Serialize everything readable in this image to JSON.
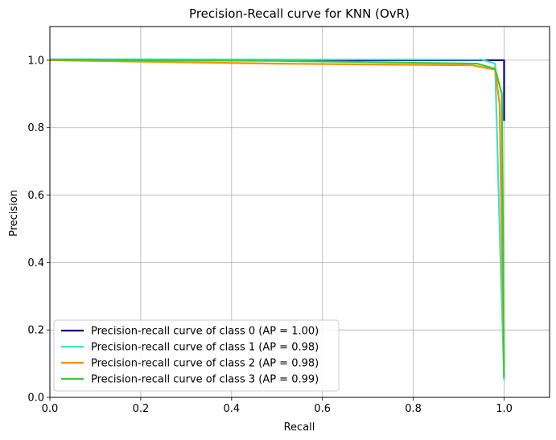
{
  "chart_data": {
    "type": "line",
    "title": "Precision-Recall curve for KNN (OvR)",
    "xlabel": "Recall",
    "ylabel": "Precision",
    "xlim": [
      0,
      1.1
    ],
    "ylim": [
      0,
      1.1
    ],
    "xticks": [
      "0.0",
      "0.2",
      "0.4",
      "0.6",
      "0.8",
      "1.0"
    ],
    "yticks": [
      "0.0",
      "0.2",
      "0.4",
      "0.6",
      "0.8",
      "1.0"
    ],
    "grid": true,
    "legend_position": "lower-left",
    "series": [
      {
        "name": "Precision-recall curve of class 0 (AP = 1.00)",
        "color": "#000080",
        "x": [
          0.0,
          1.0,
          1.0
        ],
        "y": [
          1.0,
          1.0,
          0.82
        ]
      },
      {
        "name": "Precision-recall curve of class 1 (AP = 0.98)",
        "color": "#40e0d0",
        "x": [
          0.0,
          0.95,
          0.98,
          0.99,
          1.0
        ],
        "y": [
          1.003,
          1.002,
          0.99,
          0.5,
          0.05
        ]
      },
      {
        "name": "Precision-recall curve of class 2 (AP = 0.98)",
        "color": "#ff8c00",
        "x": [
          0.0,
          0.5,
          0.93,
          0.98,
          0.99,
          1.0
        ],
        "y": [
          1.0,
          0.99,
          0.985,
          0.972,
          0.87,
          0.06
        ]
      },
      {
        "name": "Precision-recall curve of class 3 (AP = 0.99)",
        "color": "#32cd32",
        "x": [
          0.0,
          0.5,
          0.94,
          0.98,
          0.995,
          1.0
        ],
        "y": [
          1.002,
          0.998,
          0.99,
          0.975,
          0.9,
          0.06
        ]
      }
    ]
  }
}
